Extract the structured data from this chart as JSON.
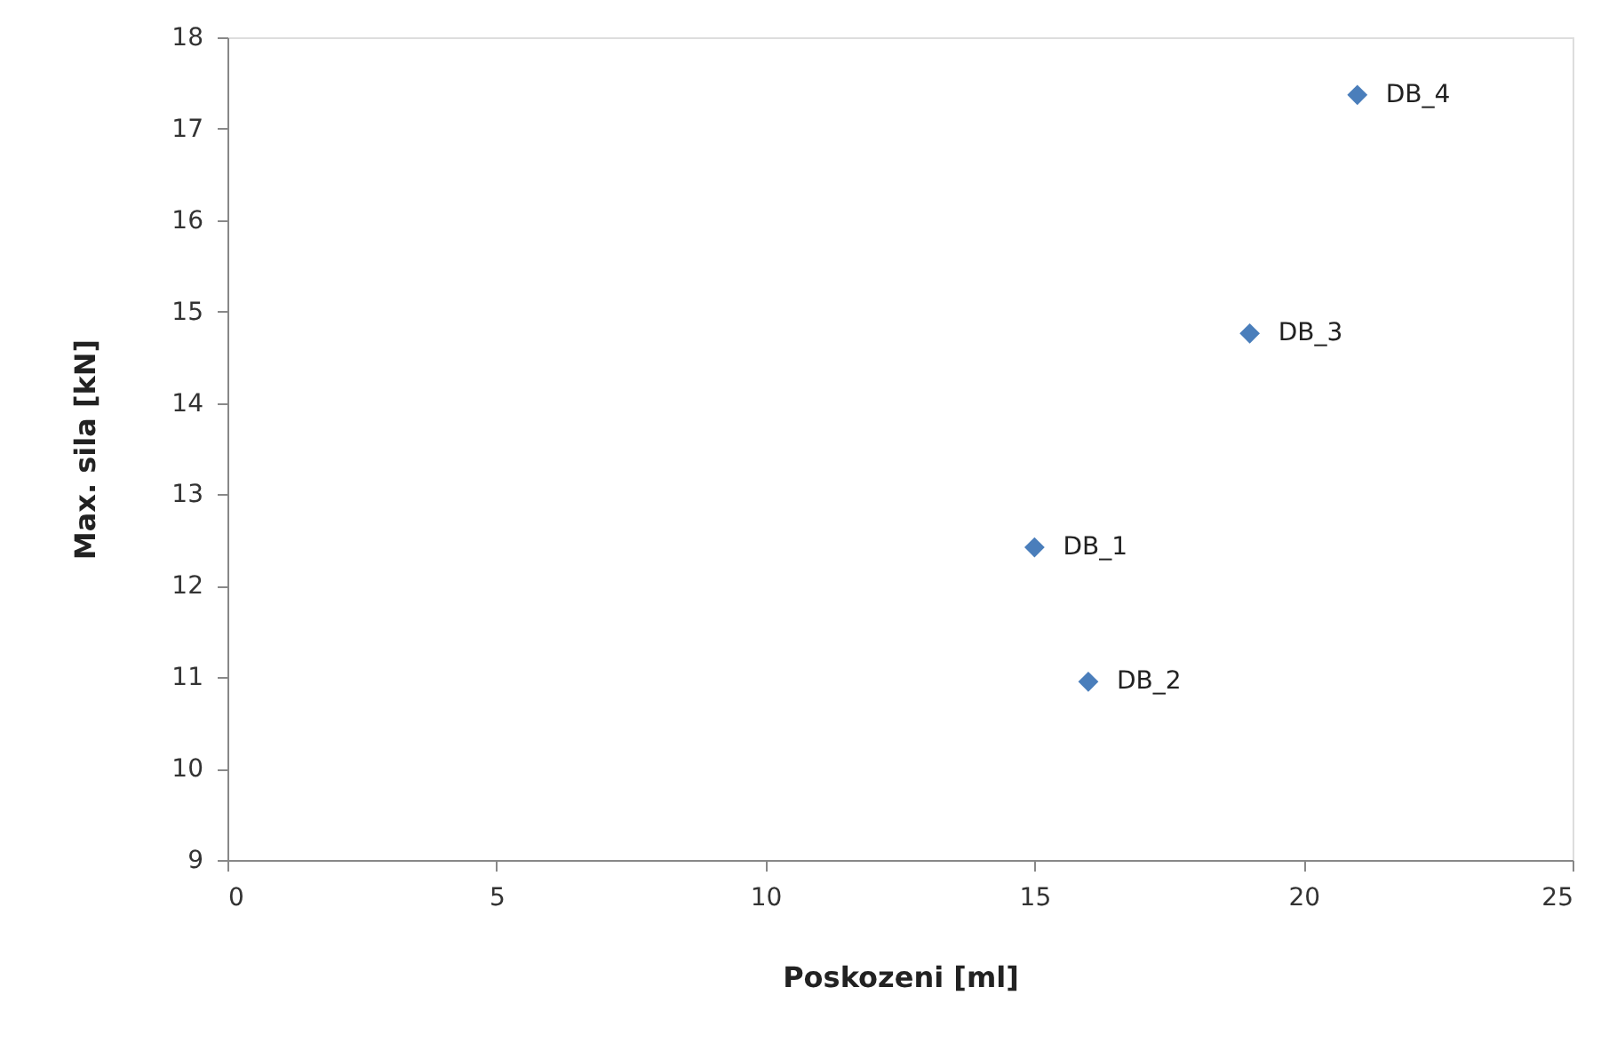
{
  "chart_data": {
    "type": "scatter",
    "xlabel": "Poskozeni [ml]",
    "ylabel": "Max. sila [kN]",
    "x": [
      15,
      16,
      19,
      21
    ],
    "series": [
      {
        "color": "#4a7ebb",
        "values": [
          12.42,
          10.95,
          14.76,
          17.37
        ]
      }
    ],
    "annotations": [
      {
        "text": "DB_1",
        "x": 15,
        "y": 12.42
      },
      {
        "text": "DB_2",
        "x": 16,
        "y": 10.95
      },
      {
        "text": "DB_3",
        "x": 19,
        "y": 14.76
      },
      {
        "text": "DB_4",
        "x": 21,
        "y": 17.37
      }
    ],
    "xlim": [
      0,
      25
    ],
    "xticks": [
      0,
      5,
      10,
      15,
      20,
      25
    ],
    "ylim": [
      9,
      18
    ],
    "yticks": [
      9,
      10,
      11,
      12,
      13,
      14,
      15,
      16,
      17,
      18
    ],
    "marker": "diamond",
    "grid": false
  }
}
